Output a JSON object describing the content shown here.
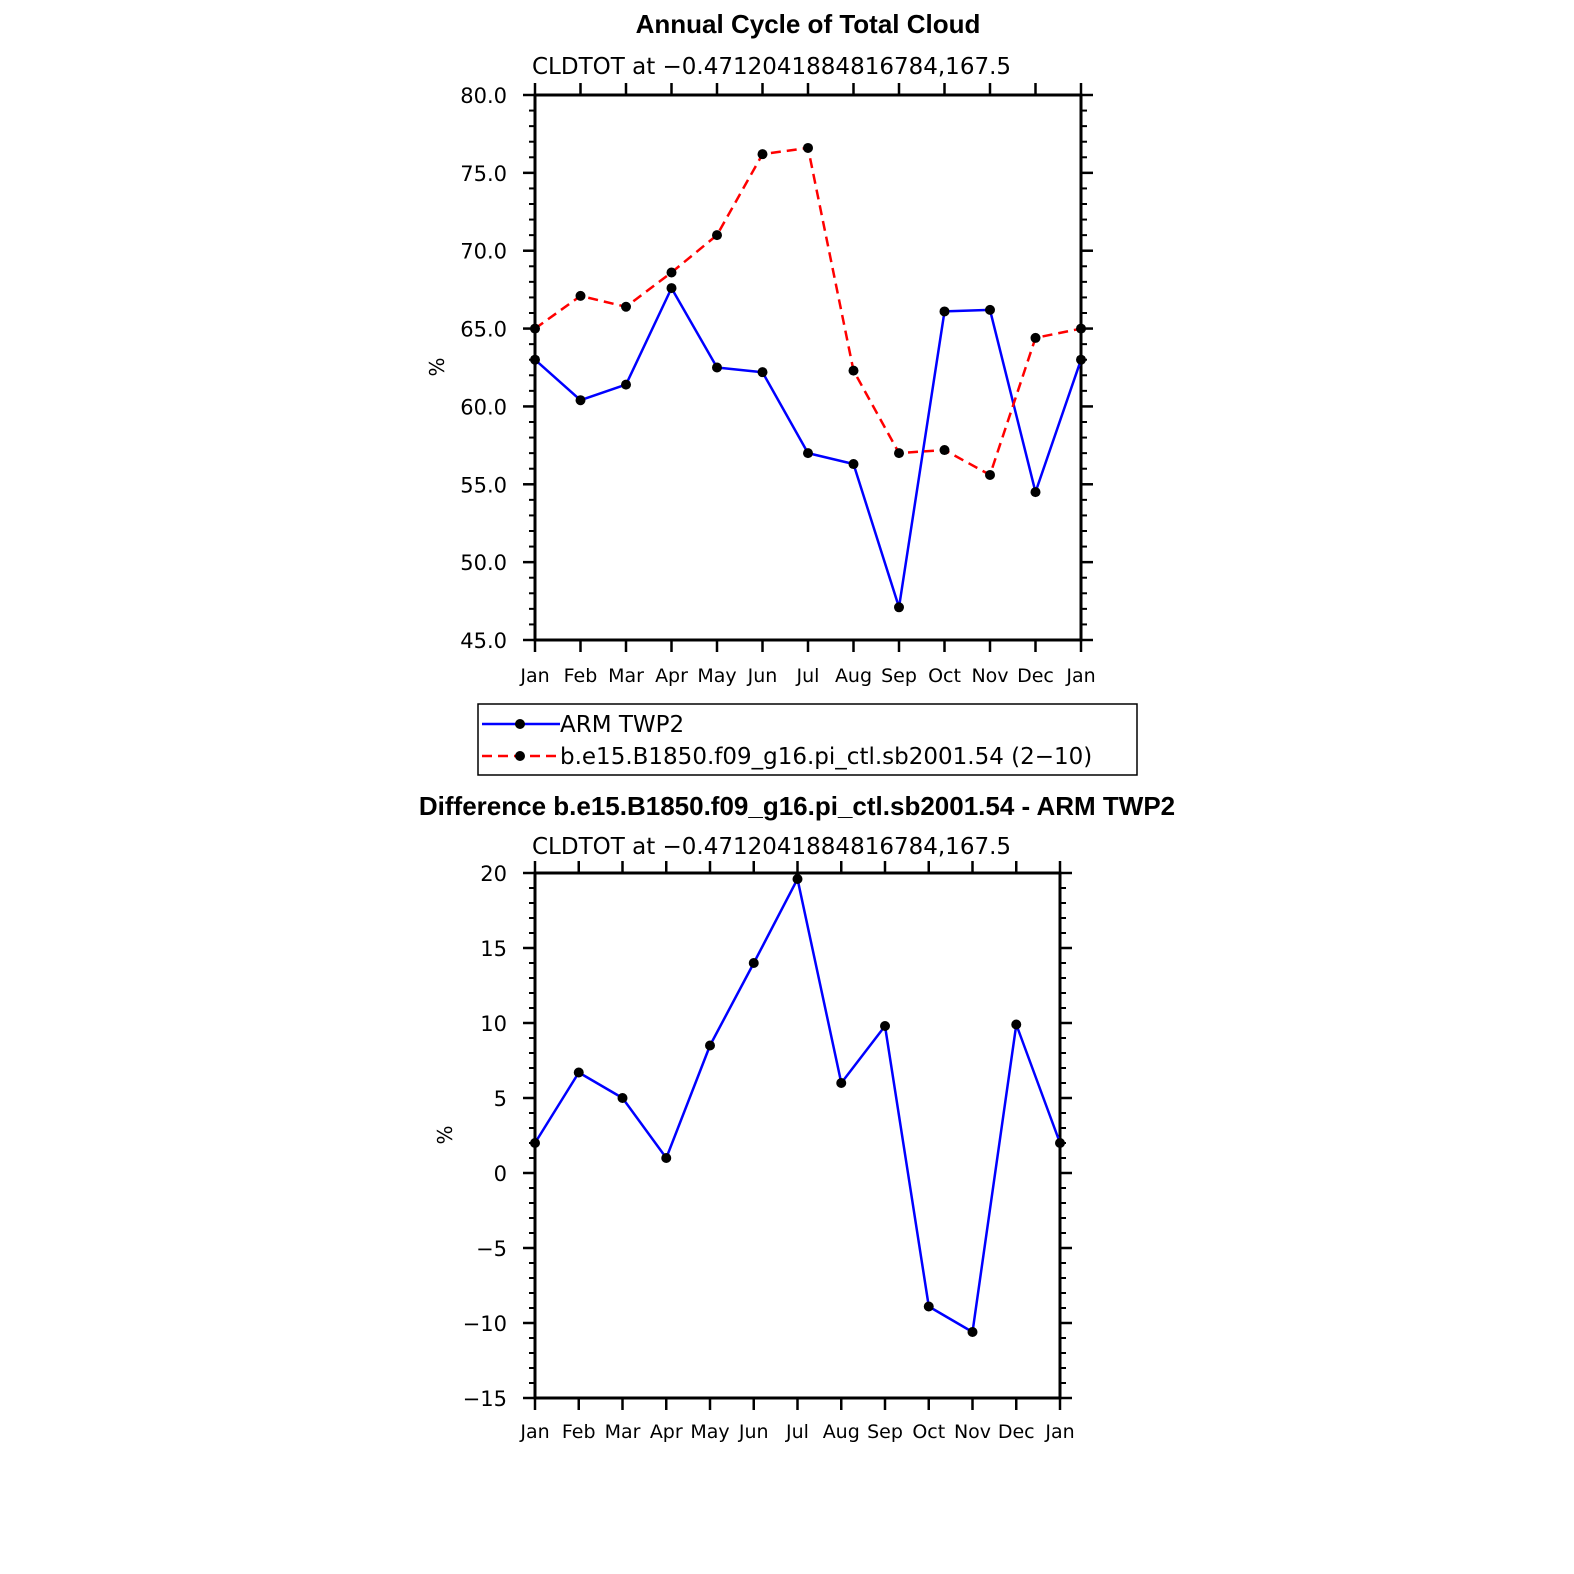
{
  "chart_data": [
    {
      "type": "line",
      "title": "Annual Cycle of Total Cloud",
      "subtitle": "CLDTOT at −0.4712041884816784,167.5",
      "ylabel": "%",
      "xlabel": "",
      "ylim": [
        45,
        80
      ],
      "yticks": [
        "45.0",
        "50.0",
        "55.0",
        "60.0",
        "65.0",
        "70.0",
        "75.0",
        "80.0"
      ],
      "categories": [
        "Jan",
        "Feb",
        "Mar",
        "Apr",
        "May",
        "Jun",
        "Jul",
        "Aug",
        "Sep",
        "Oct",
        "Nov",
        "Dec",
        "Jan"
      ],
      "grid": false,
      "legend_position": "bottom",
      "series": [
        {
          "name": "ARM TWP2",
          "color": "#0000ff",
          "dash": "solid",
          "values": [
            63.0,
            60.4,
            61.4,
            67.6,
            62.5,
            62.2,
            57.0,
            56.3,
            47.1,
            66.1,
            66.2,
            54.5,
            63.0
          ]
        },
        {
          "name": "b.e15.B1850.f09_g16.pi_ctl.sb2001.54 (2−10)",
          "color": "#ff0000",
          "dash": "dashed",
          "values": [
            65.0,
            67.1,
            66.4,
            68.6,
            71.0,
            76.2,
            76.6,
            62.3,
            57.0,
            57.2,
            55.6,
            64.4,
            65.0
          ]
        }
      ]
    },
    {
      "type": "line",
      "title": "Difference b.e15.B1850.f09_g16.pi_ctl.sb2001.54 - ARM TWP2",
      "subtitle": "CLDTOT at −0.4712041884816784,167.5",
      "ylabel": "%",
      "xlabel": "",
      "ylim": [
        -15,
        20
      ],
      "yticks": [
        "−15",
        "−10",
        "−5",
        "0",
        "5",
        "10",
        "15",
        "20"
      ],
      "categories": [
        "Jan",
        "Feb",
        "Mar",
        "Apr",
        "May",
        "Jun",
        "Jul",
        "Aug",
        "Sep",
        "Oct",
        "Nov",
        "Dec",
        "Jan"
      ],
      "grid": false,
      "series": [
        {
          "name": "",
          "color": "#0000ff",
          "dash": "solid",
          "values": [
            2.0,
            6.7,
            5.0,
            1.0,
            8.5,
            14.0,
            19.6,
            6.0,
            9.8,
            -8.9,
            -10.6,
            9.9,
            2.0
          ]
        }
      ]
    }
  ]
}
